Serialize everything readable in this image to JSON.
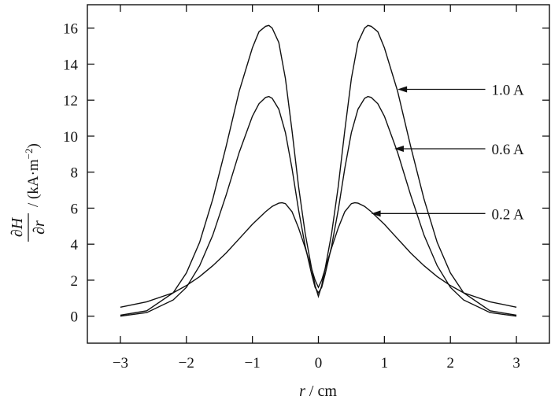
{
  "chart_data": {
    "type": "line",
    "title": "",
    "xlabel": "r / cm",
    "ylabel": "∂H/∂r / (kA·m⁻²)",
    "xlim": [
      -3.5,
      3.5
    ],
    "ylim": [
      -1.5,
      17.3
    ],
    "xticks": [
      -3,
      -2,
      -1,
      0,
      1,
      2,
      3
    ],
    "yticks": [
      0,
      2,
      4,
      6,
      8,
      10,
      12,
      14,
      16
    ],
    "grid": false,
    "legend": "none",
    "series": [
      {
        "name": "1.0 A",
        "x": [
          -3.0,
          -2.6,
          -2.2,
          -2.0,
          -1.8,
          -1.6,
          -1.4,
          -1.2,
          -1.0,
          -0.9,
          -0.8,
          -0.75,
          -0.7,
          -0.6,
          -0.5,
          -0.4,
          -0.3,
          -0.2,
          -0.1,
          -0.05,
          0.0,
          0.05,
          0.1,
          0.2,
          0.3,
          0.4,
          0.5,
          0.6,
          0.7,
          0.75,
          0.8,
          0.9,
          1.0,
          1.2,
          1.4,
          1.6,
          1.8,
          2.0,
          2.2,
          2.6,
          3.0
        ],
        "y": [
          0.05,
          0.3,
          1.3,
          2.4,
          4.1,
          6.5,
          9.4,
          12.5,
          14.9,
          15.8,
          16.1,
          16.15,
          16.0,
          15.2,
          13.2,
          10.3,
          7.2,
          4.6,
          2.6,
          1.7,
          1.1,
          1.7,
          2.6,
          4.6,
          7.2,
          10.3,
          13.2,
          15.2,
          16.0,
          16.15,
          16.1,
          15.8,
          14.9,
          12.5,
          9.4,
          6.5,
          4.1,
          2.4,
          1.3,
          0.3,
          0.05
        ]
      },
      {
        "name": "0.6 A",
        "x": [
          -3.0,
          -2.6,
          -2.2,
          -2.0,
          -1.8,
          -1.6,
          -1.4,
          -1.2,
          -1.0,
          -0.9,
          -0.8,
          -0.75,
          -0.7,
          -0.6,
          -0.5,
          -0.4,
          -0.3,
          -0.2,
          -0.1,
          -0.05,
          0.0,
          0.05,
          0.1,
          0.2,
          0.3,
          0.4,
          0.5,
          0.6,
          0.7,
          0.75,
          0.8,
          0.9,
          1.0,
          1.2,
          1.4,
          1.6,
          1.8,
          2.0,
          2.2,
          2.6,
          3.0
        ],
        "y": [
          0.0,
          0.2,
          0.9,
          1.6,
          2.8,
          4.5,
          6.7,
          9.1,
          11.1,
          11.8,
          12.15,
          12.2,
          12.1,
          11.5,
          10.2,
          8.2,
          5.9,
          3.9,
          2.3,
          1.6,
          1.3,
          1.6,
          2.3,
          3.9,
          5.9,
          8.2,
          10.2,
          11.5,
          12.1,
          12.2,
          12.15,
          11.8,
          11.1,
          9.1,
          6.7,
          4.5,
          2.8,
          1.6,
          0.9,
          0.2,
          0.0
        ]
      },
      {
        "name": "0.2 A",
        "x": [
          -3.0,
          -2.6,
          -2.2,
          -2.0,
          -1.8,
          -1.6,
          -1.4,
          -1.2,
          -1.0,
          -0.8,
          -0.7,
          -0.6,
          -0.55,
          -0.5,
          -0.4,
          -0.3,
          -0.2,
          -0.1,
          -0.05,
          0.0,
          0.05,
          0.1,
          0.2,
          0.3,
          0.4,
          0.5,
          0.55,
          0.6,
          0.7,
          0.8,
          1.0,
          1.2,
          1.4,
          1.6,
          1.8,
          2.0,
          2.2,
          2.6,
          3.0
        ],
        "y": [
          0.5,
          0.8,
          1.3,
          1.7,
          2.2,
          2.8,
          3.5,
          4.3,
          5.1,
          5.8,
          6.1,
          6.28,
          6.3,
          6.25,
          5.8,
          4.9,
          3.8,
          2.6,
          2.0,
          1.6,
          2.0,
          2.6,
          3.8,
          4.9,
          5.8,
          6.25,
          6.3,
          6.28,
          6.1,
          5.8,
          5.1,
          4.3,
          3.5,
          2.8,
          2.2,
          1.7,
          1.3,
          0.8,
          0.5
        ]
      }
    ],
    "annotations": [
      {
        "text": "1.0 A",
        "x": 2.6,
        "y": 12.6,
        "arrow_to": [
          1.2,
          12.6
        ]
      },
      {
        "text": "0.6 A",
        "x": 2.6,
        "y": 9.3,
        "arrow_to": [
          1.15,
          9.3
        ]
      },
      {
        "text": "0.2 A",
        "x": 2.6,
        "y": 5.7,
        "arrow_to": [
          0.8,
          5.7
        ]
      }
    ]
  }
}
